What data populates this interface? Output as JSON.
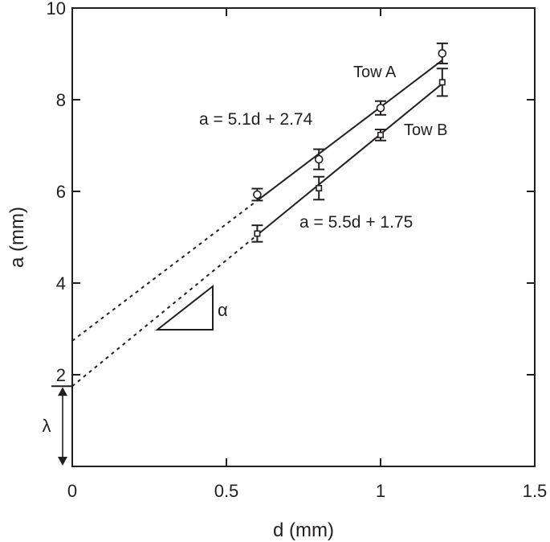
{
  "chart_data": {
    "type": "scatter",
    "xlabel": "d (mm)",
    "ylabel": "a (mm)",
    "xlim": [
      0,
      1.5
    ],
    "ylim": [
      0,
      10
    ],
    "x_ticks": [
      "0",
      "0.5",
      "1",
      "1.5"
    ],
    "y_ticks": [
      "2",
      "4",
      "6",
      "8",
      "10"
    ],
    "grid": false,
    "series": [
      {
        "name": "Tow A",
        "marker": "circle",
        "x": [
          0.6,
          0.8,
          1.0,
          1.2
        ],
        "y": [
          5.93,
          6.7,
          7.82,
          9.01
        ],
        "err": [
          0.13,
          0.22,
          0.15,
          0.22
        ],
        "fit_label": "a = 5.1d + 2.74",
        "fit": {
          "slope": 5.1,
          "intercept": 2.74
        }
      },
      {
        "name": "Tow B",
        "marker": "square",
        "x": [
          0.6,
          0.8,
          1.0,
          1.2
        ],
        "y": [
          5.08,
          6.07,
          7.23,
          8.38
        ],
        "err": [
          0.18,
          0.25,
          0.12,
          0.3
        ],
        "fit_label": "a = 5.5d + 1.75",
        "fit": {
          "slope": 5.5,
          "intercept": 1.75
        }
      }
    ],
    "annotations": {
      "slope_symbol": "α",
      "offset_symbol": "λ",
      "offset_value": 1.75
    }
  },
  "colors": {
    "ink": "#231f20",
    "background": "#ffffff"
  }
}
